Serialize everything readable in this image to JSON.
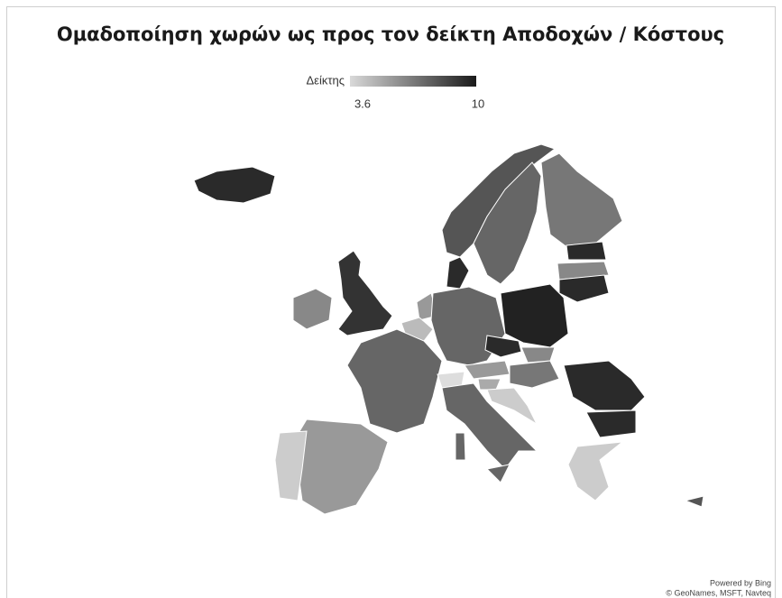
{
  "title": "Ομαδοποίηση χωρών ως προς τον δείκτη Αποδοχών / Κόστους",
  "legend": {
    "label": "Δείκτης",
    "min": 3.6,
    "max": 10
  },
  "attribution": [
    "Powered by Bing",
    "© GeoNames, MSFT, Navteq"
  ]
}
